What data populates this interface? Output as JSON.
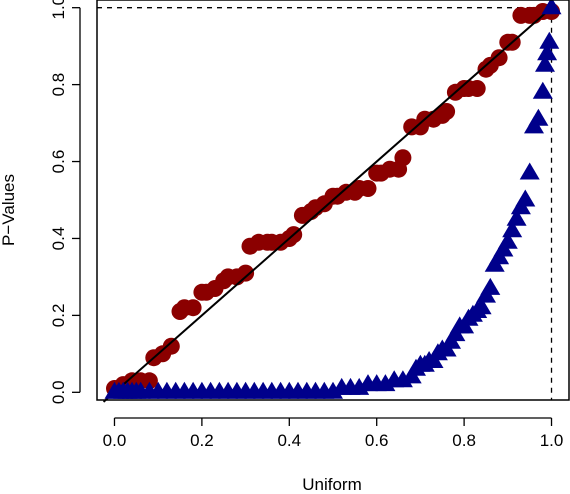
{
  "chart_data": {
    "type": "scatter",
    "xlabel": "Uniform",
    "ylabel": "P−Values",
    "xlim": [
      -0.04,
      1.04
    ],
    "ylim": [
      -0.02,
      1.02
    ],
    "xticks": [
      "0.0",
      "0.2",
      "0.4",
      "0.6",
      "0.8",
      "1.0"
    ],
    "yticks": [
      "0.0",
      "0.2",
      "0.4",
      "0.6",
      "0.8",
      "1.0"
    ],
    "reference_line": {
      "from": [
        0,
        0
      ],
      "to": [
        1,
        1
      ]
    },
    "dashed_guides": {
      "x": 1.0,
      "y": 1.0
    },
    "series": [
      {
        "marker": "circle",
        "color": "#8b0000",
        "x": [
          0.0,
          0.02,
          0.04,
          0.06,
          0.08,
          0.09,
          0.11,
          0.13,
          0.15,
          0.16,
          0.18,
          0.2,
          0.21,
          0.23,
          0.25,
          0.26,
          0.28,
          0.3,
          0.31,
          0.33,
          0.35,
          0.36,
          0.38,
          0.4,
          0.41,
          0.43,
          0.45,
          0.46,
          0.48,
          0.5,
          0.51,
          0.53,
          0.55,
          0.56,
          0.58,
          0.6,
          0.61,
          0.63,
          0.65,
          0.66,
          0.68,
          0.7,
          0.71,
          0.73,
          0.75,
          0.76,
          0.78,
          0.8,
          0.81,
          0.83,
          0.85,
          0.86,
          0.88,
          0.9,
          0.91,
          0.93,
          0.95,
          0.96,
          0.98,
          1.0
        ],
        "y": [
          0.01,
          0.02,
          0.03,
          0.03,
          0.03,
          0.09,
          0.1,
          0.12,
          0.21,
          0.22,
          0.22,
          0.26,
          0.26,
          0.27,
          0.29,
          0.3,
          0.3,
          0.31,
          0.38,
          0.39,
          0.39,
          0.39,
          0.39,
          0.4,
          0.41,
          0.46,
          0.47,
          0.48,
          0.49,
          0.51,
          0.51,
          0.52,
          0.52,
          0.53,
          0.53,
          0.57,
          0.57,
          0.58,
          0.58,
          0.61,
          0.69,
          0.69,
          0.71,
          0.71,
          0.72,
          0.73,
          0.78,
          0.79,
          0.79,
          0.79,
          0.84,
          0.85,
          0.87,
          0.91,
          0.91,
          0.98,
          0.98,
          0.98,
          0.99,
          0.99
        ]
      },
      {
        "marker": "triangle",
        "color": "#00008b",
        "x": [
          0.0,
          0.01,
          0.02,
          0.03,
          0.04,
          0.05,
          0.06,
          0.08,
          0.1,
          0.12,
          0.14,
          0.16,
          0.18,
          0.2,
          0.22,
          0.24,
          0.26,
          0.28,
          0.3,
          0.32,
          0.34,
          0.36,
          0.38,
          0.4,
          0.42,
          0.44,
          0.46,
          0.48,
          0.5,
          0.52,
          0.54,
          0.56,
          0.58,
          0.6,
          0.62,
          0.64,
          0.66,
          0.68,
          0.69,
          0.7,
          0.71,
          0.72,
          0.73,
          0.74,
          0.75,
          0.76,
          0.77,
          0.78,
          0.79,
          0.8,
          0.81,
          0.82,
          0.83,
          0.84,
          0.85,
          0.86,
          0.87,
          0.88,
          0.89,
          0.9,
          0.91,
          0.92,
          0.93,
          0.94,
          0.95,
          0.96,
          0.97,
          0.98,
          0.985,
          0.99,
          0.995,
          1.0
        ],
        "y": [
          0.0,
          0.0,
          0.0,
          0.0,
          0.0,
          0.0,
          0.0,
          0.0,
          0.0,
          0.0,
          0.0,
          0.0,
          0.0,
          0.0,
          0.0,
          0.0,
          0.0,
          0.0,
          0.0,
          0.0,
          0.0,
          0.0,
          0.0,
          0.0,
          0.0,
          0.0,
          0.0,
          0.0,
          0.0,
          0.01,
          0.01,
          0.01,
          0.02,
          0.02,
          0.02,
          0.03,
          0.03,
          0.04,
          0.06,
          0.07,
          0.07,
          0.08,
          0.08,
          0.1,
          0.11,
          0.11,
          0.13,
          0.15,
          0.17,
          0.17,
          0.19,
          0.2,
          0.21,
          0.22,
          0.25,
          0.27,
          0.33,
          0.35,
          0.37,
          0.39,
          0.42,
          0.45,
          0.48,
          0.5,
          0.57,
          0.69,
          0.71,
          0.78,
          0.85,
          0.88,
          0.91,
          1.0
        ]
      }
    ]
  }
}
